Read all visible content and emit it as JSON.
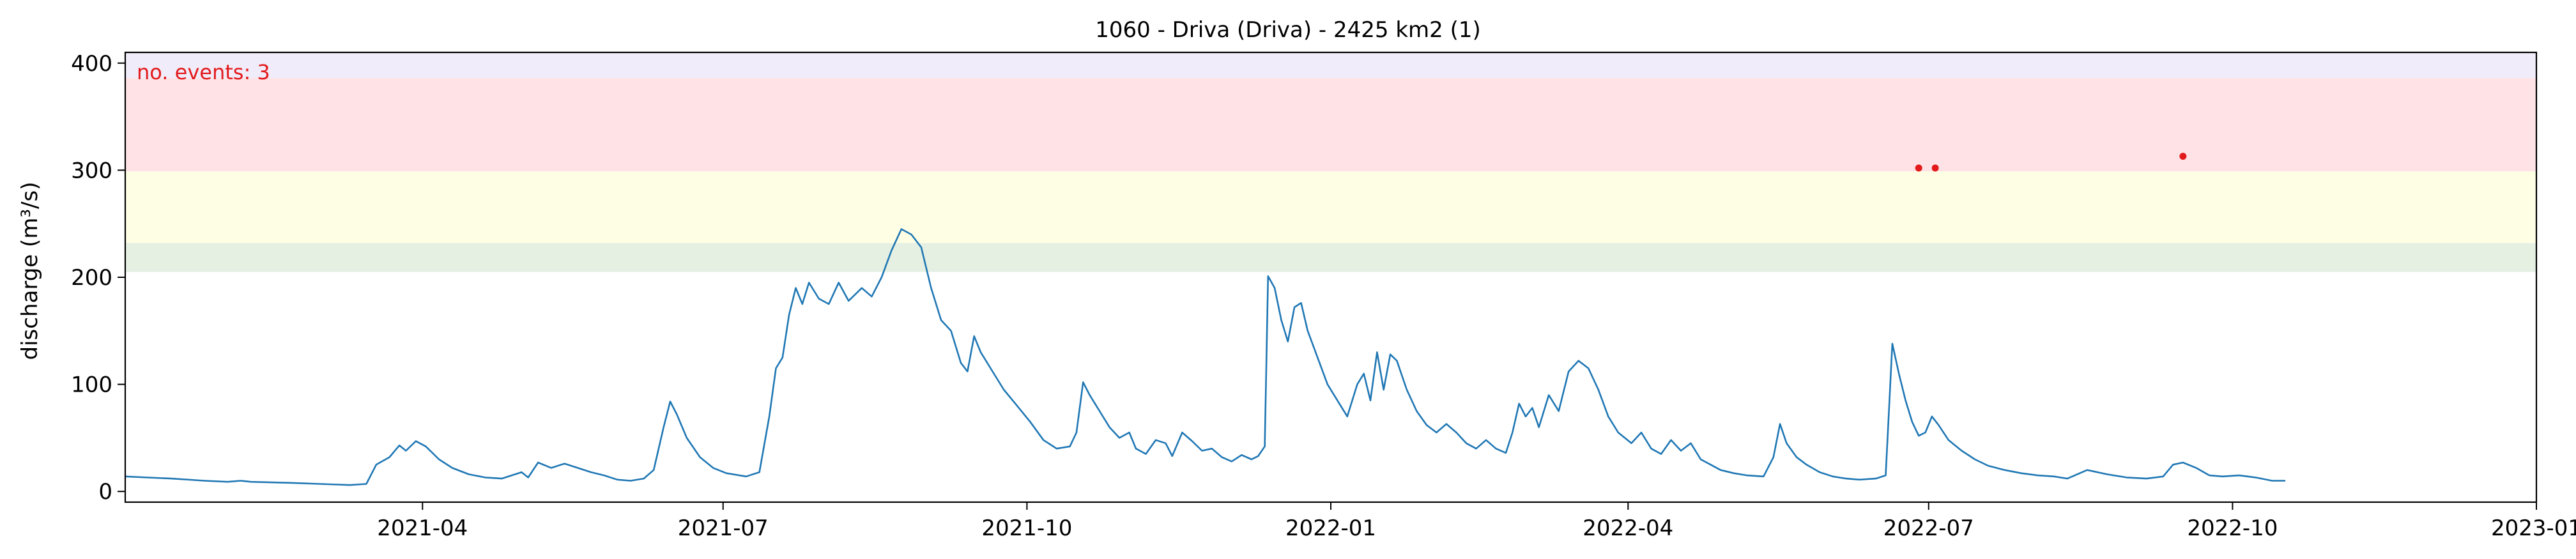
{
  "chart_data": {
    "type": "line",
    "title": "1060 - Driva (Driva) - 2425 km2 (1)",
    "xlabel": "",
    "ylabel": "discharge (m³/s)",
    "annotation": "no. events: 3",
    "xlim": [
      "2021-01-01",
      "2023-01-01"
    ],
    "ylim": [
      -10,
      410
    ],
    "x_ticks": [
      {
        "date": "2021-04-01",
        "label": "2021-04"
      },
      {
        "date": "2021-07-01",
        "label": "2021-07"
      },
      {
        "date": "2021-10-01",
        "label": "2021-10"
      },
      {
        "date": "2022-01-01",
        "label": "2022-01"
      },
      {
        "date": "2022-04-01",
        "label": "2022-04"
      },
      {
        "date": "2022-07-01",
        "label": "2022-07"
      },
      {
        "date": "2022-10-01",
        "label": "2022-10"
      },
      {
        "date": "2023-01-01",
        "label": "2023-01"
      }
    ],
    "y_ticks": [
      0,
      100,
      200,
      300,
      400
    ],
    "bands": [
      {
        "from": 205,
        "to": 232,
        "color": "#e5f0e3"
      },
      {
        "from": 232,
        "to": 299,
        "color": "#fefee4"
      },
      {
        "from": 299,
        "to": 386,
        "color": "#fee2e5"
      },
      {
        "from": 386,
        "to": 410,
        "color": "#f1ecf9"
      }
    ],
    "series": [
      {
        "color": "#1f77b4",
        "points": [
          [
            "2021-01-01",
            14
          ],
          [
            "2021-01-15",
            12
          ],
          [
            "2021-01-25",
            10
          ],
          [
            "2021-02-01",
            9
          ],
          [
            "2021-02-05",
            10
          ],
          [
            "2021-02-08",
            9
          ],
          [
            "2021-02-20",
            8
          ],
          [
            "2021-03-01",
            7
          ],
          [
            "2021-03-10",
            6
          ],
          [
            "2021-03-15",
            7
          ],
          [
            "2021-03-18",
            25
          ],
          [
            "2021-03-22",
            32
          ],
          [
            "2021-03-25",
            43
          ],
          [
            "2021-03-27",
            38
          ],
          [
            "2021-03-30",
            47
          ],
          [
            "2021-04-02",
            42
          ],
          [
            "2021-04-06",
            30
          ],
          [
            "2021-04-10",
            22
          ],
          [
            "2021-04-15",
            16
          ],
          [
            "2021-04-20",
            13
          ],
          [
            "2021-04-25",
            12
          ],
          [
            "2021-05-01",
            18
          ],
          [
            "2021-05-03",
            13
          ],
          [
            "2021-05-06",
            27
          ],
          [
            "2021-05-10",
            22
          ],
          [
            "2021-05-14",
            26
          ],
          [
            "2021-05-18",
            22
          ],
          [
            "2021-05-22",
            18
          ],
          [
            "2021-05-26",
            15
          ],
          [
            "2021-05-30",
            11
          ],
          [
            "2021-06-03",
            10
          ],
          [
            "2021-06-07",
            12
          ],
          [
            "2021-06-10",
            20
          ],
          [
            "2021-06-13",
            60
          ],
          [
            "2021-06-15",
            84
          ],
          [
            "2021-06-17",
            72
          ],
          [
            "2021-06-20",
            50
          ],
          [
            "2021-06-24",
            32
          ],
          [
            "2021-06-28",
            22
          ],
          [
            "2021-07-02",
            17
          ],
          [
            "2021-07-08",
            14
          ],
          [
            "2021-07-12",
            18
          ],
          [
            "2021-07-15",
            70
          ],
          [
            "2021-07-17",
            115
          ],
          [
            "2021-07-19",
            125
          ],
          [
            "2021-07-21",
            165
          ],
          [
            "2021-07-23",
            190
          ],
          [
            "2021-07-25",
            175
          ],
          [
            "2021-07-27",
            195
          ],
          [
            "2021-07-30",
            180
          ],
          [
            "2021-08-02",
            175
          ],
          [
            "2021-08-05",
            195
          ],
          [
            "2021-08-08",
            178
          ],
          [
            "2021-08-12",
            190
          ],
          [
            "2021-08-15",
            182
          ],
          [
            "2021-08-18",
            200
          ],
          [
            "2021-08-21",
            225
          ],
          [
            "2021-08-24",
            245
          ],
          [
            "2021-08-27",
            240
          ],
          [
            "2021-08-30",
            228
          ],
          [
            "2021-09-02",
            190
          ],
          [
            "2021-09-05",
            160
          ],
          [
            "2021-09-08",
            150
          ],
          [
            "2021-09-11",
            120
          ],
          [
            "2021-09-13",
            112
          ],
          [
            "2021-09-15",
            145
          ],
          [
            "2021-09-17",
            130
          ],
          [
            "2021-09-20",
            115
          ],
          [
            "2021-09-24",
            95
          ],
          [
            "2021-09-28",
            80
          ],
          [
            "2021-10-02",
            65
          ],
          [
            "2021-10-06",
            48
          ],
          [
            "2021-10-10",
            40
          ],
          [
            "2021-10-14",
            42
          ],
          [
            "2021-10-16",
            55
          ],
          [
            "2021-10-18",
            102
          ],
          [
            "2021-10-20",
            90
          ],
          [
            "2021-10-23",
            75
          ],
          [
            "2021-10-26",
            60
          ],
          [
            "2021-10-29",
            50
          ],
          [
            "2021-11-01",
            55
          ],
          [
            "2021-11-03",
            40
          ],
          [
            "2021-11-06",
            35
          ],
          [
            "2021-11-09",
            48
          ],
          [
            "2021-11-12",
            45
          ],
          [
            "2021-11-14",
            33
          ],
          [
            "2021-11-17",
            55
          ],
          [
            "2021-11-20",
            47
          ],
          [
            "2021-11-23",
            38
          ],
          [
            "2021-11-26",
            40
          ],
          [
            "2021-11-29",
            32
          ],
          [
            "2021-12-02",
            28
          ],
          [
            "2021-12-05",
            34
          ],
          [
            "2021-12-08",
            30
          ],
          [
            "2021-12-10",
            33
          ],
          [
            "2021-12-12",
            42
          ],
          [
            "2021-12-13",
            201
          ],
          [
            "2021-12-15",
            190
          ],
          [
            "2021-12-17",
            160
          ],
          [
            "2021-12-19",
            140
          ],
          [
            "2021-12-21",
            172
          ],
          [
            "2021-12-23",
            176
          ],
          [
            "2021-12-25",
            150
          ],
          [
            "2021-12-28",
            125
          ],
          [
            "2021-12-31",
            100
          ],
          [
            "2022-01-03",
            85
          ],
          [
            "2022-01-06",
            70
          ],
          [
            "2022-01-09",
            100
          ],
          [
            "2022-01-11",
            110
          ],
          [
            "2022-01-13",
            85
          ],
          [
            "2022-01-15",
            130
          ],
          [
            "2022-01-17",
            95
          ],
          [
            "2022-01-19",
            128
          ],
          [
            "2022-01-21",
            122
          ],
          [
            "2022-01-24",
            95
          ],
          [
            "2022-01-27",
            75
          ],
          [
            "2022-01-30",
            62
          ],
          [
            "2022-02-02",
            55
          ],
          [
            "2022-02-05",
            63
          ],
          [
            "2022-02-08",
            55
          ],
          [
            "2022-02-11",
            45
          ],
          [
            "2022-02-14",
            40
          ],
          [
            "2022-02-17",
            48
          ],
          [
            "2022-02-20",
            40
          ],
          [
            "2022-02-23",
            36
          ],
          [
            "2022-02-25",
            55
          ],
          [
            "2022-02-27",
            82
          ],
          [
            "2022-03-01",
            70
          ],
          [
            "2022-03-03",
            78
          ],
          [
            "2022-03-05",
            60
          ],
          [
            "2022-03-08",
            90
          ],
          [
            "2022-03-11",
            75
          ],
          [
            "2022-03-14",
            112
          ],
          [
            "2022-03-17",
            122
          ],
          [
            "2022-03-20",
            115
          ],
          [
            "2022-03-23",
            95
          ],
          [
            "2022-03-26",
            70
          ],
          [
            "2022-03-29",
            55
          ],
          [
            "2022-04-02",
            45
          ],
          [
            "2022-04-05",
            55
          ],
          [
            "2022-04-08",
            40
          ],
          [
            "2022-04-11",
            35
          ],
          [
            "2022-04-14",
            48
          ],
          [
            "2022-04-17",
            38
          ],
          [
            "2022-04-20",
            45
          ],
          [
            "2022-04-23",
            30
          ],
          [
            "2022-04-26",
            25
          ],
          [
            "2022-04-29",
            20
          ],
          [
            "2022-05-03",
            17
          ],
          [
            "2022-05-07",
            15
          ],
          [
            "2022-05-12",
            14
          ],
          [
            "2022-05-15",
            32
          ],
          [
            "2022-05-17",
            63
          ],
          [
            "2022-05-19",
            45
          ],
          [
            "2022-05-22",
            32
          ],
          [
            "2022-05-25",
            25
          ],
          [
            "2022-05-29",
            18
          ],
          [
            "2022-06-02",
            14
          ],
          [
            "2022-06-06",
            12
          ],
          [
            "2022-06-10",
            11
          ],
          [
            "2022-06-15",
            12
          ],
          [
            "2022-06-18",
            15
          ],
          [
            "2022-06-20",
            138
          ],
          [
            "2022-06-22",
            110
          ],
          [
            "2022-06-24",
            85
          ],
          [
            "2022-06-26",
            65
          ],
          [
            "2022-06-28",
            52
          ],
          [
            "2022-06-30",
            55
          ],
          [
            "2022-07-02",
            70
          ],
          [
            "2022-07-04",
            62
          ],
          [
            "2022-07-07",
            48
          ],
          [
            "2022-07-11",
            38
          ],
          [
            "2022-07-15",
            30
          ],
          [
            "2022-07-19",
            24
          ],
          [
            "2022-07-24",
            20
          ],
          [
            "2022-07-29",
            17
          ],
          [
            "2022-08-03",
            15
          ],
          [
            "2022-08-08",
            14
          ],
          [
            "2022-08-12",
            12
          ],
          [
            "2022-08-18",
            20
          ],
          [
            "2022-08-24",
            16
          ],
          [
            "2022-08-30",
            13
          ],
          [
            "2022-09-05",
            12
          ],
          [
            "2022-09-10",
            14
          ],
          [
            "2022-09-13",
            25
          ],
          [
            "2022-09-16",
            27
          ],
          [
            "2022-09-20",
            22
          ],
          [
            "2022-09-24",
            15
          ],
          [
            "2022-09-28",
            14
          ],
          [
            "2022-10-03",
            15
          ],
          [
            "2022-10-08",
            13
          ],
          [
            "2022-10-13",
            10
          ],
          [
            "2022-10-17",
            10
          ]
        ]
      }
    ],
    "events": [
      {
        "date": "2022-06-28",
        "value": 302
      },
      {
        "date": "2022-07-03",
        "value": 302
      },
      {
        "date": "2022-09-16",
        "value": 313
      }
    ]
  }
}
